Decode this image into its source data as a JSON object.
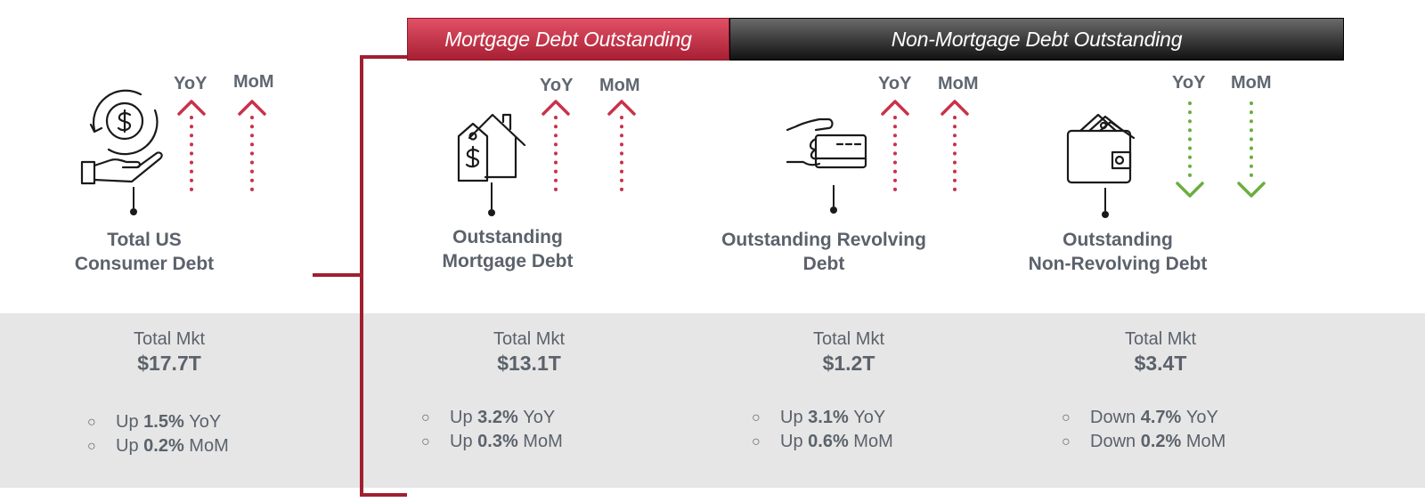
{
  "headers": {
    "mortgage": "Mortgage Debt Outstanding",
    "non_mortgage": "Non-Mortgage Debt Outstanding"
  },
  "colors": {
    "up": "#c8324a",
    "down": "#6aae3f",
    "bracket": "#a01f30"
  },
  "indicator_labels": {
    "yoy": "YoY",
    "mom": "MoM"
  },
  "total_mkt_label": "Total Mkt",
  "items": [
    {
      "icon": "hand-coin-icon",
      "title_line1": "Total US",
      "title_line2": "Consumer Debt",
      "total_mkt": "$17.7T",
      "yoy_direction": "up",
      "mom_direction": "up",
      "yoy_dir_text": "Up",
      "yoy_value": "1.5%",
      "yoy_suffix": "YoY",
      "mom_dir_text": "Up",
      "mom_value": "0.2%",
      "mom_suffix": "MoM"
    },
    {
      "icon": "house-price-tag-icon",
      "title_line1": "Outstanding",
      "title_line2": "Mortgage Debt",
      "total_mkt": "$13.1T",
      "yoy_direction": "up",
      "mom_direction": "up",
      "yoy_dir_text": "Up",
      "yoy_value": "3.2%",
      "yoy_suffix": "YoY",
      "mom_dir_text": "Up",
      "mom_value": "0.3%",
      "mom_suffix": "MoM"
    },
    {
      "icon": "hand-credit-card-icon",
      "title_line1": "Outstanding Revolving",
      "title_line2": "Debt",
      "total_mkt": "$1.2T",
      "yoy_direction": "up",
      "mom_direction": "up",
      "yoy_dir_text": "Up",
      "yoy_value": "3.1%",
      "yoy_suffix": "YoY",
      "mom_dir_text": "Up",
      "mom_value": "0.6%",
      "mom_suffix": "MoM"
    },
    {
      "icon": "wallet-icon",
      "title_line1": "Outstanding",
      "title_line2": "Non-Revolving Debt",
      "total_mkt": "$3.4T",
      "yoy_direction": "down",
      "mom_direction": "down",
      "yoy_dir_text": "Down",
      "yoy_value": "4.7%",
      "yoy_suffix": "YoY",
      "mom_dir_text": "Down",
      "mom_value": "0.2%",
      "mom_suffix": "MoM"
    }
  ],
  "bullet_symbol": "○"
}
